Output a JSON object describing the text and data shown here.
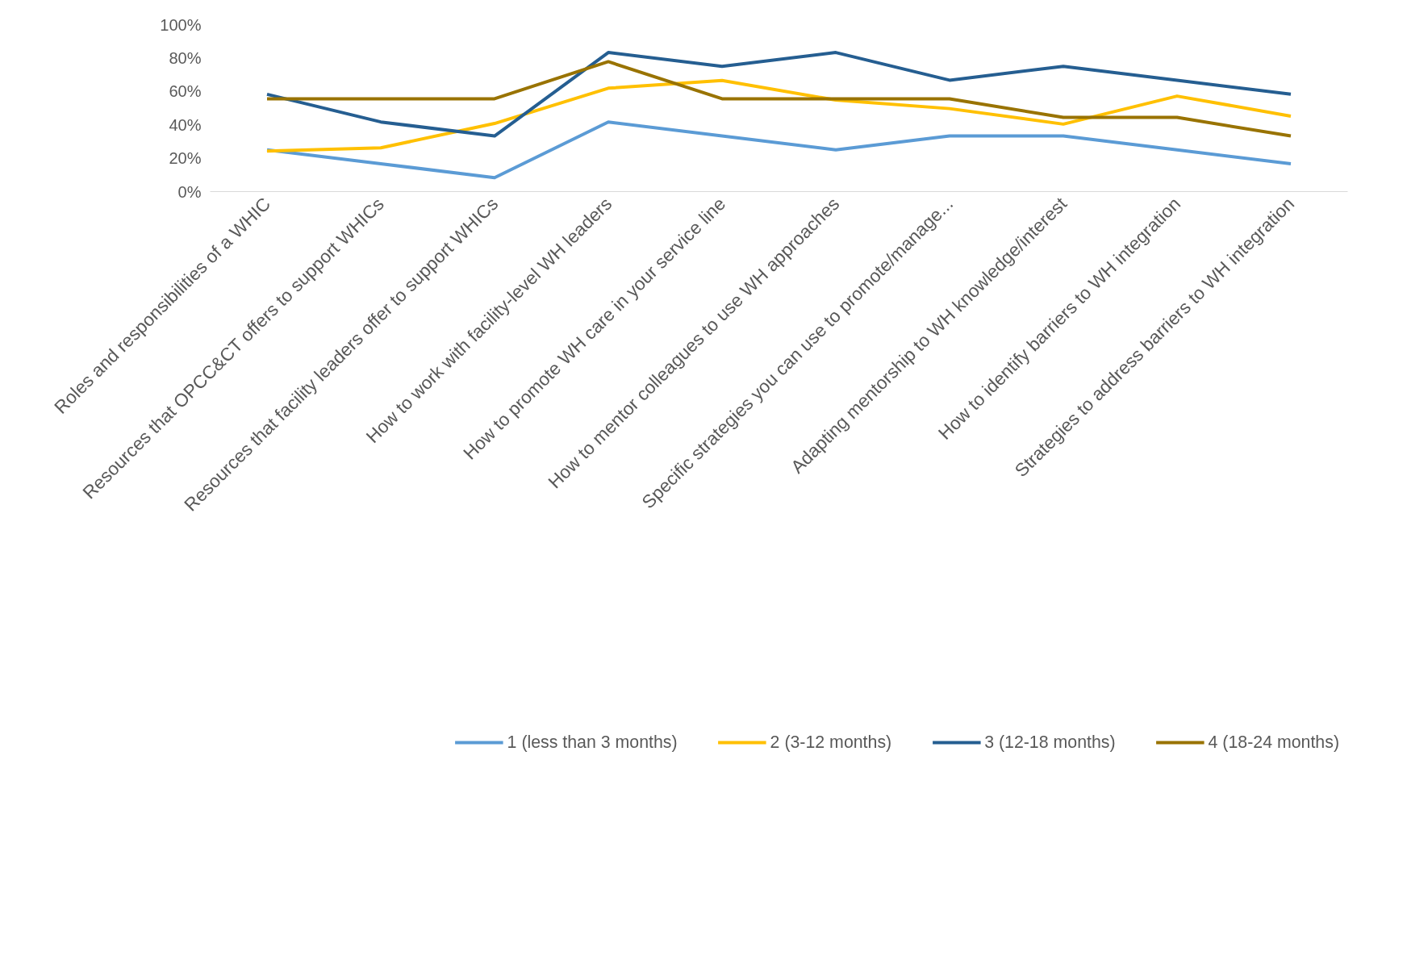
{
  "chart_data": {
    "type": "line",
    "categories": [
      "Roles and responsibilities of a WHIC",
      "Resources that OPCC&CT offers to support WHICs",
      "Resources that facility leaders offer to support WHICs",
      "How to work with facility-level WH leaders",
      "How to promote WH care in your service line",
      "How to mentor colleagues to use WH approaches",
      "Specific strategies you can use to promote/manage...",
      "Adapting mentorship to WH knowledge/interest",
      "How to identify barriers to WH integration",
      "Strategies to address barriers to WH integration"
    ],
    "series": [
      {
        "name": "1 (less than 3 months)",
        "color": "#5b9bd5",
        "values": [
          25,
          16.7,
          8.3,
          41.7,
          33.3,
          25,
          33.3,
          33.3,
          25,
          16.7
        ]
      },
      {
        "name": "2 (3-12 months)",
        "color": "#ffc000",
        "values": [
          24.3,
          26.2,
          40.8,
          61.9,
          66.5,
          54.8,
          49.7,
          40.4,
          57.2,
          45.2
        ]
      },
      {
        "name": "3 (12-18 months)",
        "color": "#255e91",
        "values": [
          58.3,
          41.7,
          33.3,
          83.3,
          75,
          83.3,
          66.7,
          75,
          66.7,
          58.3
        ]
      },
      {
        "name": "4 (18-24 months)",
        "color": "#997300",
        "values": [
          55.6,
          55.6,
          55.6,
          77.8,
          55.6,
          55.6,
          55.6,
          44.4,
          44.4,
          33.3
        ]
      }
    ],
    "ylim": [
      0,
      100
    ],
    "yticks": [
      {
        "value": 0,
        "label": "0%"
      },
      {
        "value": 20,
        "label": "20%"
      },
      {
        "value": 40,
        "label": "40%"
      },
      {
        "value": 60,
        "label": "60%"
      },
      {
        "value": 80,
        "label": "80%"
      },
      {
        "value": 100,
        "label": "100%"
      }
    ],
    "grid": false,
    "legend": "bottom",
    "marker": "none",
    "line_style": "solid"
  }
}
